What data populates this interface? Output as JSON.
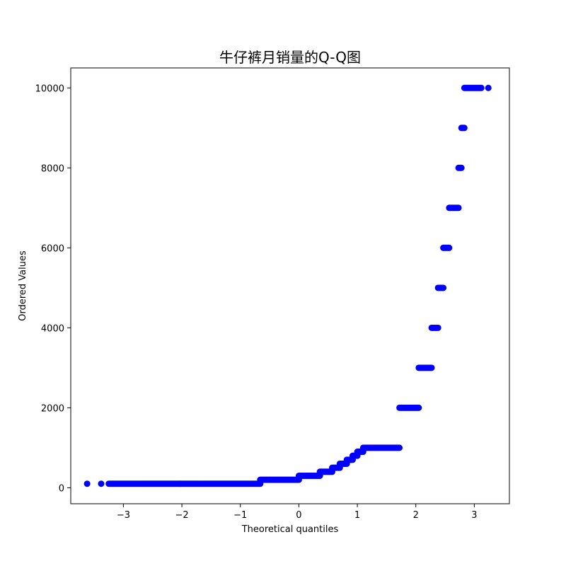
{
  "chart_data": {
    "type": "scatter",
    "title": "牛仔裤月销量的Q-Q图",
    "xlabel": "Theoretical quantiles",
    "ylabel": "Ordered Values",
    "xlim": [
      -3.9,
      3.6
    ],
    "ylim": [
      -400,
      10500
    ],
    "xticks": [
      -3,
      -2,
      -1,
      0,
      1,
      2,
      3
    ],
    "xtick_labels": [
      "−3",
      "−2",
      "−1",
      "0",
      "1",
      "2",
      "3"
    ],
    "yticks": [
      0,
      2000,
      4000,
      6000,
      8000,
      10000
    ],
    "ytick_labels": [
      "0",
      "2000",
      "4000",
      "6000",
      "8000",
      "10000"
    ],
    "grid": false,
    "marker_color": "#0000ff",
    "series": [
      {
        "segments": [
          {
            "x_start": -3.62,
            "x_end": -3.62,
            "y": 100
          },
          {
            "x_start": -3.38,
            "x_end": -3.38,
            "y": 100
          },
          {
            "x_start": -3.25,
            "x_end": -0.66,
            "y": 100
          },
          {
            "x_start": -0.66,
            "x_end": 0.0,
            "y": 200
          },
          {
            "x_start": 0.0,
            "x_end": 0.36,
            "y": 300
          },
          {
            "x_start": 0.36,
            "x_end": 0.57,
            "y": 400
          },
          {
            "x_start": 0.57,
            "x_end": 0.7,
            "y": 500
          },
          {
            "x_start": 0.7,
            "x_end": 0.82,
            "y": 600
          },
          {
            "x_start": 0.82,
            "x_end": 0.92,
            "y": 700
          },
          {
            "x_start": 0.92,
            "x_end": 1.0,
            "y": 800
          },
          {
            "x_start": 1.0,
            "x_end": 1.1,
            "y": 900
          },
          {
            "x_start": 1.1,
            "x_end": 1.72,
            "y": 1000
          },
          {
            "x_start": 1.72,
            "x_end": 2.05,
            "y": 2000
          },
          {
            "x_start": 2.05,
            "x_end": 2.27,
            "y": 3000
          },
          {
            "x_start": 2.27,
            "x_end": 2.38,
            "y": 4000
          },
          {
            "x_start": 2.38,
            "x_end": 2.47,
            "y": 5000
          },
          {
            "x_start": 2.47,
            "x_end": 2.57,
            "y": 6000
          },
          {
            "x_start": 2.57,
            "x_end": 2.73,
            "y": 7000
          },
          {
            "x_start": 2.73,
            "x_end": 2.78,
            "y": 8000
          },
          {
            "x_start": 2.78,
            "x_end": 2.83,
            "y": 9000
          },
          {
            "x_start": 2.83,
            "x_end": 3.12,
            "y": 10000
          },
          {
            "x_start": 3.24,
            "x_end": 3.24,
            "y": 10000
          }
        ]
      }
    ]
  }
}
